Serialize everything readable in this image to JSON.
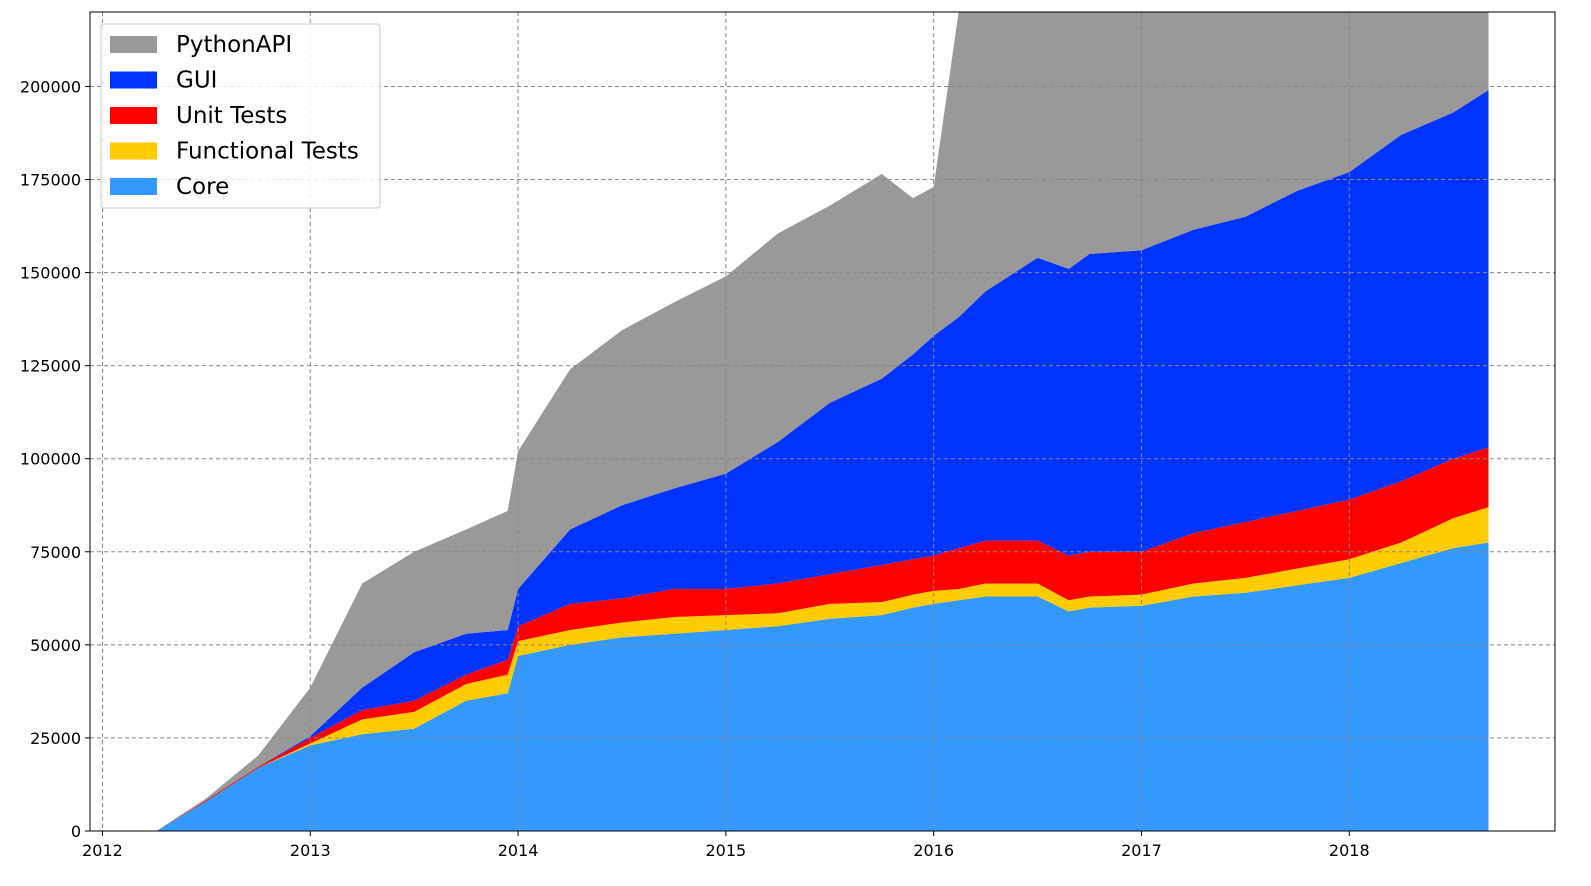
{
  "chart_data": {
    "type": "stackedarea",
    "x": [
      2012.26,
      2012.5,
      2012.75,
      2013.0,
      2013.25,
      2013.5,
      2013.75,
      2013.95,
      2014.0,
      2014.25,
      2014.5,
      2014.75,
      2015.0,
      2015.25,
      2015.5,
      2015.75,
      2015.9,
      2016.0,
      2016.12,
      2016.25,
      2016.5,
      2016.65,
      2016.75,
      2017.0,
      2017.25,
      2017.5,
      2017.75,
      2018.0,
      2018.25,
      2018.5,
      2018.67
    ],
    "series": [
      {
        "name": "Core",
        "color": "#3399ff",
        "values": [
          0,
          8000,
          17000,
          23000,
          26000,
          27500,
          35000,
          37000,
          47000,
          50000,
          52000,
          53000,
          54000,
          55000,
          57000,
          58000,
          60000,
          61000,
          62000,
          63000,
          63000,
          59000,
          60000,
          60500,
          63000,
          64000,
          66000,
          68000,
          72000,
          76000,
          77500
        ]
      },
      {
        "name": "Functional Tests",
        "color": "#ffcc00",
        "values": [
          0,
          0,
          0,
          500,
          4000,
          4500,
          4500,
          5000,
          4000,
          4000,
          4000,
          4500,
          4000,
          3500,
          4000,
          3500,
          3500,
          3500,
          3000,
          3500,
          3500,
          3000,
          3000,
          3000,
          3500,
          4000,
          4500,
          5000,
          5500,
          8000,
          9500
        ]
      },
      {
        "name": "Unit Tests",
        "color": "#ff0000",
        "values": [
          0,
          300,
          300,
          1500,
          2500,
          3000,
          2500,
          4000,
          4000,
          7000,
          6500,
          7500,
          7000,
          8000,
          8000,
          10000,
          9500,
          9500,
          11000,
          11500,
          11500,
          12000,
          12000,
          11500,
          13500,
          15000,
          15500,
          16000,
          16500,
          16000,
          16000
        ]
      },
      {
        "name": "GUI",
        "color": "#0033ff",
        "values": [
          0,
          0,
          0,
          500,
          6000,
          13000,
          11000,
          8000,
          10000,
          20000,
          25000,
          27000,
          31000,
          38000,
          46000,
          50000,
          55000,
          59000,
          62000,
          67000,
          76000,
          77000,
          80000,
          81000,
          81500,
          82000,
          86000,
          88000,
          93000,
          93000,
          96000
        ]
      },
      {
        "name": "PythonAPI",
        "color": "#999999",
        "values": [
          0,
          500,
          3000,
          13000,
          28000,
          27000,
          28000,
          32000,
          37000,
          43000,
          47000,
          50000,
          53000,
          56000,
          53000,
          55000,
          42000,
          40000,
          82000,
          80000,
          71000,
          74000,
          70000,
          69000,
          63500,
          60000,
          53000,
          48000,
          38000,
          32000,
          26000
        ]
      }
    ],
    "xlim": [
      2011.94,
      2018.99
    ],
    "xticks": [
      2012,
      2013,
      2014,
      2015,
      2016,
      2017,
      2018
    ],
    "ylim": [
      0,
      220000
    ],
    "yticks": [
      0,
      25000,
      50000,
      75000,
      100000,
      125000,
      150000,
      175000,
      200000
    ],
    "grid": true,
    "legend": "upper-left"
  }
}
